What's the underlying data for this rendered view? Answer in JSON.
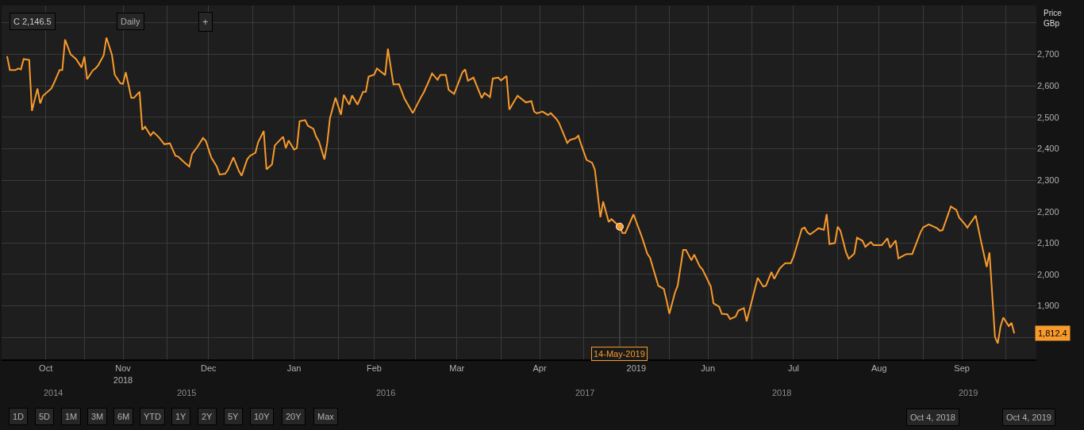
{
  "chart_data": {
    "type": "line",
    "ylabel": "Price\nGBp",
    "x": [
      "2018-10-04",
      "2018-10-05",
      "2018-10-07",
      "2018-10-08",
      "2018-10-09",
      "2018-10-10",
      "2018-10-12",
      "2018-10-13",
      "2018-10-15",
      "2018-10-16",
      "2018-10-17",
      "2018-10-20",
      "2018-10-21",
      "2018-10-23",
      "2018-10-24",
      "2018-10-25",
      "2018-10-27",
      "2018-10-29",
      "2018-10-31",
      "2018-11-01",
      "2018-11-02",
      "2018-11-04",
      "2018-11-05",
      "2018-11-06",
      "2018-11-08",
      "2018-11-09",
      "2018-11-11",
      "2018-11-12",
      "2018-11-14",
      "2018-11-15",
      "2018-11-16",
      "2018-11-18",
      "2018-11-19",
      "2018-11-21",
      "2018-11-22",
      "2018-11-23",
      "2018-11-25",
      "2018-11-26",
      "2018-11-28",
      "2018-11-30",
      "2018-12-02",
      "2018-12-04",
      "2018-12-05",
      "2018-12-07",
      "2018-12-09",
      "2018-12-10",
      "2018-12-12",
      "2018-12-14",
      "2018-12-15",
      "2018-12-17",
      "2018-12-19",
      "2018-12-20",
      "2018-12-22",
      "2018-12-23",
      "2018-12-25",
      "2018-12-27",
      "2018-12-28",
      "2018-12-30",
      "2018-12-31",
      "2019-01-02",
      "2019-01-03",
      "2019-01-05",
      "2019-01-06",
      "2019-01-08",
      "2019-01-09",
      "2019-01-12",
      "2019-01-13",
      "2019-01-14",
      "2019-01-16",
      "2019-01-17",
      "2019-01-18",
      "2019-01-20",
      "2019-01-21",
      "2019-01-23",
      "2019-01-24",
      "2019-01-25",
      "2019-01-27",
      "2019-01-28",
      "2019-01-29",
      "2019-01-31",
      "2019-02-02",
      "2019-02-03",
      "2019-02-05",
      "2019-02-06",
      "2019-02-08",
      "2019-02-10",
      "2019-02-11",
      "2019-02-12",
      "2019-02-14",
      "2019-02-15",
      "2019-02-18",
      "2019-02-19",
      "2019-02-21",
      "2019-02-23",
      "2019-02-25",
      "2019-02-28",
      "2019-03-01",
      "2019-03-03",
      "2019-03-04",
      "2019-03-06",
      "2019-03-07",
      "2019-03-09",
      "2019-03-10",
      "2019-03-12",
      "2019-03-13",
      "2019-03-15",
      "2019-03-18",
      "2019-03-19",
      "2019-03-20",
      "2019-03-22",
      "2019-03-25",
      "2019-03-26",
      "2019-03-28",
      "2019-03-29",
      "2019-03-31",
      "2019-04-01",
      "2019-04-03",
      "2019-04-04",
      "2019-04-06",
      "2019-04-07",
      "2019-04-10",
      "2019-04-12",
      "2019-04-13",
      "2019-04-14",
      "2019-04-16",
      "2019-04-18",
      "2019-04-19",
      "2019-04-21",
      "2019-04-22",
      "2019-04-25",
      "2019-04-26",
      "2019-04-28",
      "2019-04-29",
      "2019-04-30",
      "2019-05-02",
      "2019-05-04",
      "2019-05-05",
      "2019-05-07",
      "2019-05-08",
      "2019-05-10",
      "2019-05-11",
      "2019-05-14",
      "2019-05-15",
      "2019-05-16",
      "2019-05-19",
      "2019-05-22",
      "2019-05-24",
      "2019-05-25",
      "2019-05-28",
      "2019-05-30",
      "2019-05-31",
      "2019-06-01",
      "2019-06-03",
      "2019-06-04",
      "2019-06-06",
      "2019-06-07",
      "2019-06-09",
      "2019-06-10",
      "2019-06-12",
      "2019-06-13",
      "2019-06-16",
      "2019-06-17",
      "2019-06-19",
      "2019-06-20",
      "2019-06-22",
      "2019-06-23",
      "2019-06-25",
      "2019-06-26",
      "2019-06-28",
      "2019-06-29",
      "2019-07-03",
      "2019-07-05",
      "2019-07-06",
      "2019-07-08",
      "2019-07-09",
      "2019-07-11",
      "2019-07-12",
      "2019-07-13",
      "2019-07-15",
      "2019-07-16",
      "2019-07-19",
      "2019-07-20",
      "2019-07-21",
      "2019-07-22",
      "2019-07-24",
      "2019-07-25",
      "2019-07-27",
      "2019-07-28",
      "2019-07-29",
      "2019-07-31",
      "2019-08-01",
      "2019-08-02",
      "2019-08-04",
      "2019-08-05",
      "2019-08-07",
      "2019-08-08",
      "2019-08-10",
      "2019-08-11",
      "2019-08-13",
      "2019-08-14",
      "2019-08-17",
      "2019-08-19",
      "2019-08-20",
      "2019-08-22",
      "2019-08-23",
      "2019-08-25",
      "2019-08-26",
      "2019-08-28",
      "2019-08-31",
      "2019-09-01",
      "2019-09-03",
      "2019-09-06",
      "2019-09-07",
      "2019-09-08",
      "2019-09-11",
      "2019-09-13",
      "2019-09-14",
      "2019-09-16",
      "2019-09-17",
      "2019-09-18",
      "2019-09-20",
      "2019-09-22",
      "2019-09-24",
      "2019-09-25",
      "2019-09-27",
      "2019-09-28",
      "2019-09-29",
      "2019-09-30",
      "2019-10-02",
      "2019-10-03",
      "2019-10-04"
    ],
    "series": [
      {
        "color": "#f89a2c",
        "values": [
          2694,
          2650,
          2650,
          2655,
          2652,
          2685,
          2682,
          2520,
          2591,
          2544,
          2568,
          2591,
          2609,
          2650,
          2650,
          2747,
          2700,
          2685,
          2658,
          2693,
          2621,
          2648,
          2655,
          2665,
          2697,
          2753,
          2698,
          2635,
          2608,
          2606,
          2643,
          2562,
          2562,
          2581,
          2460,
          2470,
          2442,
          2453,
          2436,
          2414,
          2417,
          2377,
          2375,
          2358,
          2343,
          2383,
          2406,
          2434,
          2425,
          2372,
          2343,
          2318,
          2320,
          2332,
          2372,
          2329,
          2314,
          2366,
          2377,
          2387,
          2421,
          2456,
          2334,
          2350,
          2410,
          2438,
          2402,
          2426,
          2397,
          2402,
          2487,
          2491,
          2473,
          2463,
          2438,
          2423,
          2366,
          2417,
          2497,
          2562,
          2508,
          2571,
          2540,
          2569,
          2540,
          2581,
          2581,
          2629,
          2635,
          2655,
          2634,
          2718,
          2604,
          2605,
          2559,
          2513,
          2530,
          2564,
          2579,
          2618,
          2639,
          2619,
          2634,
          2634,
          2587,
          2574,
          2643,
          2652,
          2616,
          2626,
          2561,
          2577,
          2564,
          2623,
          2626,
          2617,
          2631,
          2524,
          2554,
          2568,
          2547,
          2551,
          2518,
          2512,
          2518,
          2507,
          2513,
          2495,
          2482,
          2418,
          2428,
          2433,
          2441,
          2414,
          2364,
          2355,
          2333,
          2182,
          2232,
          2167,
          2176,
          2152,
          2132,
          2132,
          2191,
          2120,
          2066,
          2053,
          1964,
          1954,
          1917,
          1875,
          1942,
          1964,
          2078,
          2078,
          2045,
          2063,
          2026,
          2016,
          1962,
          1908,
          1898,
          1875,
          1873,
          1858,
          1866,
          1885,
          1893,
          1851,
          1989,
          1962,
          1964,
          2008,
          1986,
          2019,
          2028,
          2036,
          2036,
          2056,
          2145,
          2149,
          2134,
          2127,
          2140,
          2147,
          2142,
          2192,
          2097,
          2100,
          2152,
          2139,
          2071,
          2050,
          2066,
          2117,
          2107,
          2088,
          2103,
          2093,
          2093,
          2115,
          2085,
          2108,
          2051,
          2061,
          2065,
          2065,
          2134,
          2150,
          2159,
          2147,
          2139,
          2141,
          2216,
          2205,
          2181,
          2161,
          2149,
          2162,
          2187,
          2103,
          2024,
          2070,
          1801,
          1781,
          1834,
          1863,
          1836,
          1846,
          1812.4
        ]
      }
    ],
    "xlim": [
      "2018-10-02",
      "2019-10-12"
    ],
    "xticks": [
      {
        "value": "2018-10-18",
        "label": "Oct"
      },
      {
        "value": "2018-11-01",
        "label": null
      },
      {
        "value": "2018-11-15",
        "label": "Nov\n2018"
      },
      {
        "value": "2018-12-01",
        "label": null
      },
      {
        "value": "2018-12-16",
        "label": "Dec"
      },
      {
        "value": "2019-01-01",
        "label": null
      },
      {
        "value": "2019-01-16",
        "label": "Jan"
      },
      {
        "value": "2019-02-01",
        "label": null
      },
      {
        "value": "2019-02-14",
        "label": "Feb"
      },
      {
        "value": "2019-03-01",
        "label": null
      },
      {
        "value": "2019-03-16",
        "label": "Mar"
      },
      {
        "value": "2019-04-01",
        "label": null
      },
      {
        "value": "2019-04-15",
        "label": "Apr"
      },
      {
        "value": "2019-05-01",
        "label": null
      },
      {
        "value": "2019-05-20",
        "label": "2019"
      },
      {
        "value": "2019-06-01",
        "label": null
      },
      {
        "value": "2019-06-15",
        "label": "Jun"
      },
      {
        "value": "2019-07-01",
        "label": null
      },
      {
        "value": "2019-07-16",
        "label": "Jul"
      },
      {
        "value": "2019-08-01",
        "label": null
      },
      {
        "value": "2019-08-16",
        "label": "Aug"
      },
      {
        "value": "2019-09-01",
        "label": null
      },
      {
        "value": "2019-09-15",
        "label": "Sep"
      },
      {
        "value": "2019-10-01",
        "label": null
      }
    ],
    "ylim": [
      1730,
      2855
    ],
    "yticks": [
      {
        "value": 1800,
        "label": null
      },
      {
        "value": 1900,
        "label": "1,900"
      },
      {
        "value": 2000,
        "label": "2,000"
      },
      {
        "value": 2100,
        "label": "2,100"
      },
      {
        "value": 2200,
        "label": "2,200"
      },
      {
        "value": 2300,
        "label": "2,300"
      },
      {
        "value": 2400,
        "label": "2,400"
      },
      {
        "value": 2500,
        "label": "2,500"
      },
      {
        "value": 2600,
        "label": "2,600"
      },
      {
        "value": 2700,
        "label": "2,700"
      },
      {
        "value": 2800,
        "label": null
      }
    ],
    "grid": true,
    "marker": "none",
    "line_style": "solid",
    "annotations": [
      "C 2,146.5",
      "Daily",
      "+",
      "2014",
      "2015",
      "2016",
      "2017",
      "2018",
      "2019",
      "1D",
      "5D",
      "1M",
      "3M",
      "6M",
      "YTD",
      "1Y",
      "2Y",
      "5Y",
      "10Y",
      "20Y",
      "Max",
      "Oct 4, 2018",
      "Oct 4, 2019",
      {
        "text": "14-May-2019",
        "x": "2019-05-14",
        "y": 2152
      },
      {
        "text": "1,812.4",
        "x": "2019-10-04",
        "y": 1812.4
      }
    ]
  }
}
